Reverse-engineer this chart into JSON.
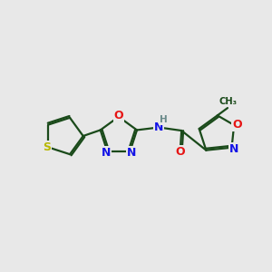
{
  "bg_color": "#e8e8e8",
  "bond_color": "#1a4a1a",
  "bond_width": 1.6,
  "N_color": "#1414e6",
  "O_color": "#e61414",
  "S_color": "#b8b800",
  "H_color": "#6a8a8a",
  "figsize": [
    3.0,
    3.0
  ],
  "dpi": 100,
  "xlim": [
    0,
    10
  ],
  "ylim": [
    2,
    8
  ]
}
